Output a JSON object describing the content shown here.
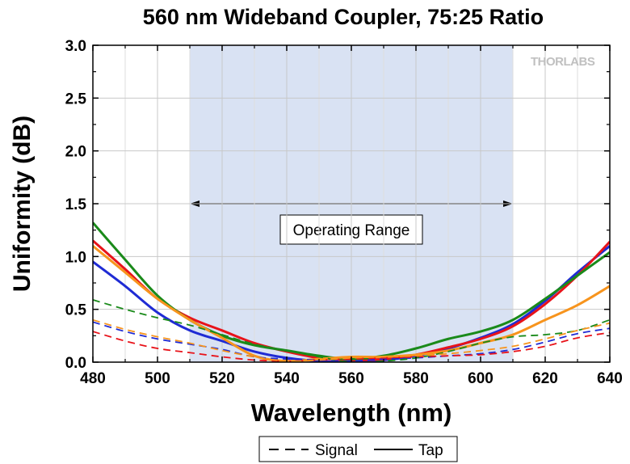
{
  "chart_data": {
    "type": "line",
    "title": "560 nm Wideband Coupler, 75:25 Ratio",
    "xlabel": "Wavelength (nm)",
    "ylabel": "Uniformity (dB)",
    "xlim": [
      480,
      640
    ],
    "ylim": [
      0.0,
      3.0
    ],
    "x_ticks": [
      "480",
      "500",
      "520",
      "540",
      "560",
      "580",
      "600",
      "620",
      "640"
    ],
    "y_ticks": [
      "0.0",
      "0.5",
      "1.0",
      "1.5",
      "2.0",
      "2.5",
      "3.0"
    ],
    "grid": true,
    "logo": "THORLABS",
    "operating_range": {
      "x_start": 510,
      "x_end": 610,
      "label": "Operating Range"
    },
    "legend": [
      {
        "label": "Signal",
        "dash": "dashed"
      },
      {
        "label": "Tap",
        "dash": "solid"
      }
    ],
    "series": [
      {
        "style": "solid",
        "color": "#1f2bd4",
        "points": [
          [
            480,
            0.95
          ],
          [
            490,
            0.72
          ],
          [
            500,
            0.47
          ],
          [
            510,
            0.3
          ],
          [
            520,
            0.2
          ],
          [
            530,
            0.1
          ],
          [
            540,
            0.04
          ],
          [
            550,
            0.01
          ],
          [
            560,
            0.0
          ],
          [
            570,
            0.02
          ],
          [
            580,
            0.06
          ],
          [
            590,
            0.13
          ],
          [
            600,
            0.23
          ],
          [
            610,
            0.36
          ],
          [
            620,
            0.58
          ],
          [
            630,
            0.85
          ],
          [
            640,
            1.1
          ]
        ]
      },
      {
        "style": "solid",
        "color": "#e8131a",
        "points": [
          [
            480,
            1.15
          ],
          [
            490,
            0.88
          ],
          [
            500,
            0.6
          ],
          [
            510,
            0.42
          ],
          [
            520,
            0.3
          ],
          [
            530,
            0.18
          ],
          [
            540,
            0.1
          ],
          [
            550,
            0.04
          ],
          [
            560,
            0.02
          ],
          [
            570,
            0.03
          ],
          [
            580,
            0.07
          ],
          [
            590,
            0.14
          ],
          [
            600,
            0.22
          ],
          [
            610,
            0.34
          ],
          [
            620,
            0.55
          ],
          [
            630,
            0.82
          ],
          [
            640,
            1.14
          ]
        ]
      },
      {
        "style": "solid",
        "color": "#1a8a1a",
        "points": [
          [
            480,
            1.32
          ],
          [
            490,
            0.97
          ],
          [
            500,
            0.63
          ],
          [
            510,
            0.4
          ],
          [
            520,
            0.25
          ],
          [
            530,
            0.16
          ],
          [
            540,
            0.11
          ],
          [
            550,
            0.06
          ],
          [
            560,
            0.03
          ],
          [
            570,
            0.06
          ],
          [
            580,
            0.13
          ],
          [
            590,
            0.22
          ],
          [
            600,
            0.29
          ],
          [
            610,
            0.4
          ],
          [
            620,
            0.6
          ],
          [
            630,
            0.82
          ],
          [
            640,
            1.04
          ]
        ]
      },
      {
        "style": "solid",
        "color": "#f7941d",
        "points": [
          [
            480,
            1.1
          ],
          [
            490,
            0.85
          ],
          [
            500,
            0.6
          ],
          [
            510,
            0.4
          ],
          [
            520,
            0.23
          ],
          [
            530,
            0.06
          ],
          [
            540,
            0.01
          ],
          [
            550,
            0.03
          ],
          [
            560,
            0.05
          ],
          [
            570,
            0.05
          ],
          [
            580,
            0.07
          ],
          [
            590,
            0.11
          ],
          [
            600,
            0.18
          ],
          [
            610,
            0.26
          ],
          [
            620,
            0.4
          ],
          [
            630,
            0.54
          ],
          [
            640,
            0.72
          ]
        ]
      },
      {
        "style": "dashed",
        "color": "#1f2bd4",
        "points": [
          [
            480,
            0.38
          ],
          [
            490,
            0.29
          ],
          [
            500,
            0.22
          ],
          [
            510,
            0.17
          ],
          [
            520,
            0.12
          ],
          [
            530,
            0.05
          ],
          [
            540,
            0.03
          ],
          [
            550,
            0.02
          ],
          [
            560,
            0.01
          ],
          [
            570,
            0.03
          ],
          [
            580,
            0.04
          ],
          [
            590,
            0.06
          ],
          [
            600,
            0.08
          ],
          [
            610,
            0.12
          ],
          [
            620,
            0.19
          ],
          [
            630,
            0.27
          ],
          [
            640,
            0.32
          ]
        ]
      },
      {
        "style": "dashed",
        "color": "#e8131a",
        "points": [
          [
            480,
            0.29
          ],
          [
            490,
            0.2
          ],
          [
            500,
            0.13
          ],
          [
            510,
            0.09
          ],
          [
            520,
            0.05
          ],
          [
            530,
            0.02
          ],
          [
            540,
            0.01
          ],
          [
            550,
            0.02
          ],
          [
            560,
            0.03
          ],
          [
            570,
            0.04
          ],
          [
            580,
            0.05
          ],
          [
            590,
            0.06
          ],
          [
            600,
            0.07
          ],
          [
            610,
            0.1
          ],
          [
            620,
            0.15
          ],
          [
            630,
            0.23
          ],
          [
            640,
            0.28
          ]
        ]
      },
      {
        "style": "dashed",
        "color": "#1a8a1a",
        "points": [
          [
            480,
            0.59
          ],
          [
            490,
            0.5
          ],
          [
            500,
            0.42
          ],
          [
            510,
            0.35
          ],
          [
            520,
            0.26
          ],
          [
            530,
            0.17
          ],
          [
            540,
            0.11
          ],
          [
            550,
            0.05
          ],
          [
            560,
            0.0
          ],
          [
            570,
            0.01
          ],
          [
            580,
            0.04
          ],
          [
            590,
            0.1
          ],
          [
            600,
            0.18
          ],
          [
            610,
            0.24
          ],
          [
            620,
            0.26
          ],
          [
            630,
            0.3
          ],
          [
            640,
            0.4
          ]
        ]
      },
      {
        "style": "dashed",
        "color": "#f7941d",
        "points": [
          [
            480,
            0.4
          ],
          [
            490,
            0.31
          ],
          [
            500,
            0.24
          ],
          [
            510,
            0.18
          ],
          [
            520,
            0.11
          ],
          [
            530,
            0.05
          ],
          [
            540,
            0.01
          ],
          [
            550,
            0.02
          ],
          [
            560,
            0.04
          ],
          [
            570,
            0.05
          ],
          [
            580,
            0.06
          ],
          [
            590,
            0.08
          ],
          [
            600,
            0.11
          ],
          [
            610,
            0.15
          ],
          [
            620,
            0.22
          ],
          [
            630,
            0.3
          ],
          [
            640,
            0.37
          ]
        ]
      }
    ]
  }
}
